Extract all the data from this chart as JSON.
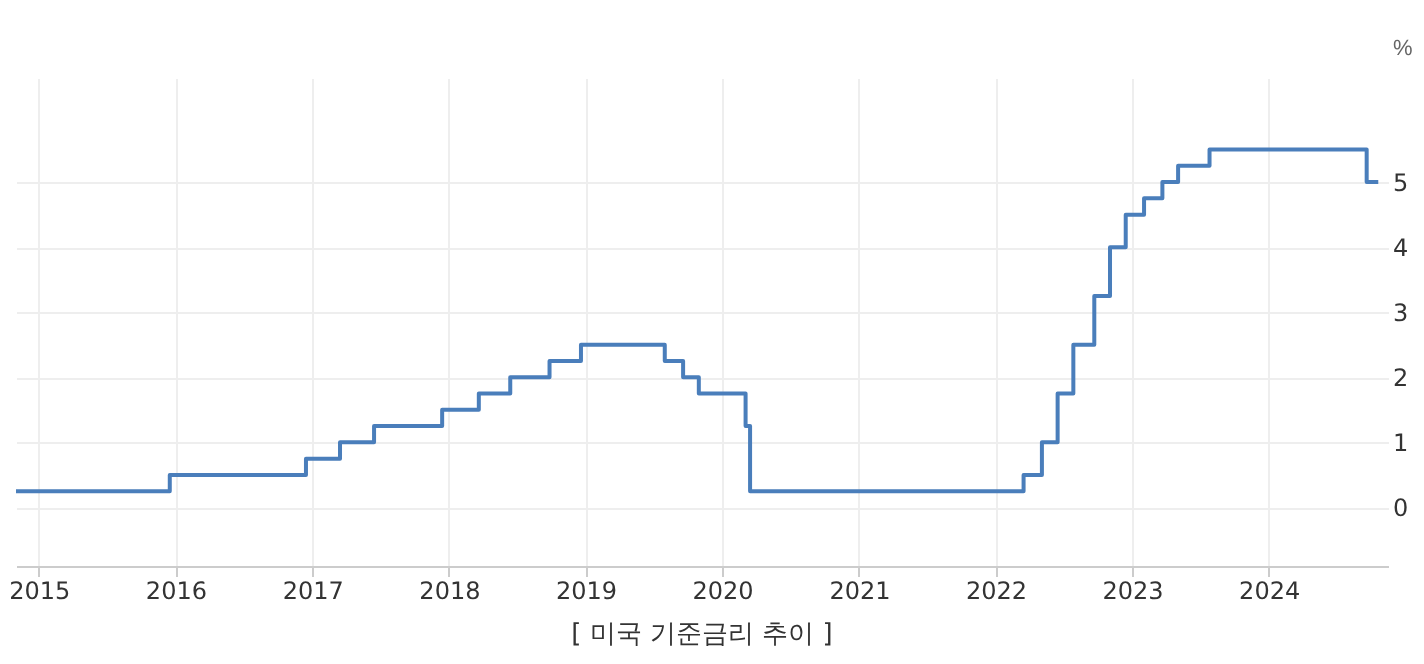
{
  "chart_data": {
    "type": "step",
    "title": "[ 미국 기준금리 추이 ]",
    "ylabel": "%",
    "x": [
      "2014-11-01",
      "2015-12-17",
      "2016-12-15",
      "2017-03-16",
      "2017-06-15",
      "2017-12-14",
      "2018-03-22",
      "2018-06-14",
      "2018-09-27",
      "2018-12-20",
      "2019-08-01",
      "2019-09-19",
      "2019-10-31",
      "2020-03-04",
      "2020-03-16",
      "2022-03-17",
      "2022-05-05",
      "2022-06-16",
      "2022-07-28",
      "2022-09-22",
      "2022-11-03",
      "2022-12-15",
      "2023-02-02",
      "2023-03-23",
      "2023-05-04",
      "2023-07-27",
      "2024-09-19",
      "2024-10-20"
    ],
    "series": [
      {
        "color": "#4a7ebb",
        "values": [
          0.25,
          0.5,
          0.75,
          1.0,
          1.25,
          1.5,
          1.75,
          2.0,
          2.25,
          2.5,
          2.25,
          2.0,
          1.75,
          1.25,
          0.25,
          0.5,
          1.0,
          1.75,
          2.5,
          3.25,
          4.0,
          4.5,
          4.75,
          5.0,
          5.25,
          5.5,
          5.0,
          5.0
        ]
      }
    ],
    "xlim": [
      "2014-11-01",
      "2024-11-15"
    ],
    "xticks": [
      "2015",
      "2016",
      "2017",
      "2018",
      "2019",
      "2020",
      "2021",
      "2022",
      "2023",
      "2024"
    ],
    "ylim": [
      -0.9,
      6.6
    ],
    "yticks": [
      0,
      1,
      2,
      3,
      4,
      5
    ],
    "grid": true,
    "line_style": "solid",
    "marker": "none"
  }
}
